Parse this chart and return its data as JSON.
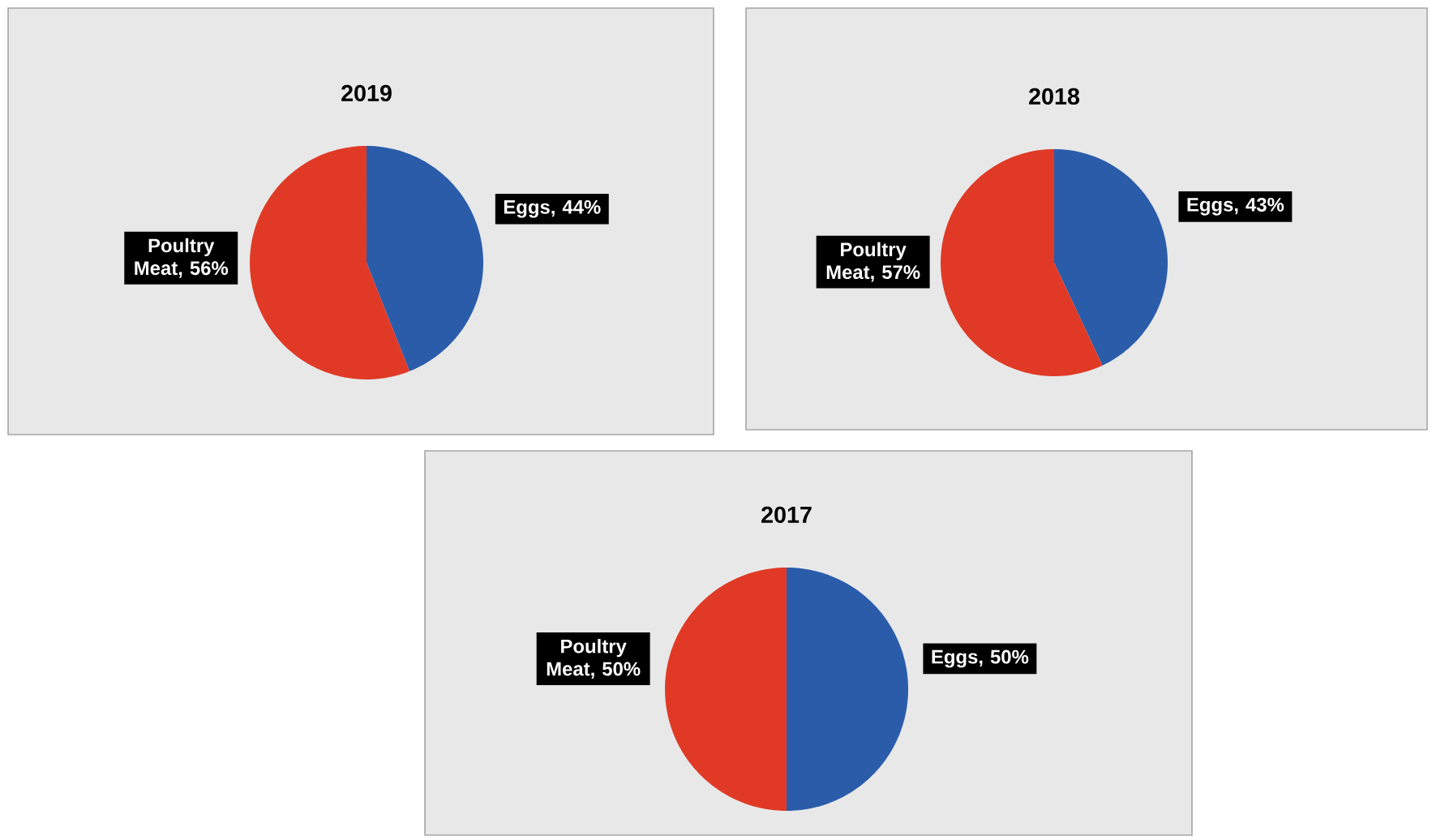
{
  "chart_data": [
    {
      "type": "pie",
      "title": "2019",
      "categories": [
        "Eggs",
        "Poultry Meat"
      ],
      "values": [
        44,
        56
      ],
      "value_labels": [
        ", 44%",
        ", 56%"
      ],
      "colors": [
        "#2a5caa",
        "#e03a26"
      ]
    },
    {
      "type": "pie",
      "title": "2018",
      "categories": [
        "Eggs",
        "Poultry Meat"
      ],
      "values": [
        43,
        57
      ],
      "value_labels": [
        ", 43%",
        ", 57%"
      ],
      "colors": [
        "#2a5caa",
        "#e03a26"
      ]
    },
    {
      "type": "pie",
      "title": "2017",
      "categories": [
        "Eggs",
        "Poultry Meat"
      ],
      "values": [
        50,
        50
      ],
      "value_labels": [
        ", 50%",
        ", 50%"
      ],
      "colors": [
        "#2a5caa",
        "#e03a26"
      ]
    }
  ]
}
